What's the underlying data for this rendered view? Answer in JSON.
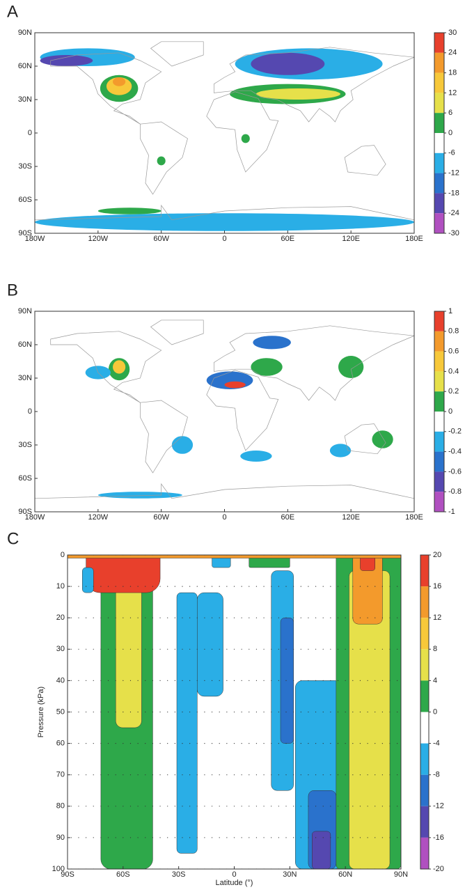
{
  "chart_data": [
    {
      "type": "map",
      "panel_label": "A",
      "xlim": [
        -180,
        180
      ],
      "ylim": [
        -90,
        90
      ],
      "xticks": [
        {
          "value": -180,
          "label": "180W"
        },
        {
          "value": -120,
          "label": "120W"
        },
        {
          "value": -60,
          "label": "60W"
        },
        0,
        {
          "value": 60,
          "label": "60E"
        },
        {
          "value": 120,
          "label": "120E"
        },
        {
          "value": 180,
          "label": "180E"
        }
      ],
      "yticks": [
        {
          "value": 90,
          "label": "90N"
        },
        {
          "value": 60,
          "label": "60N"
        },
        {
          "value": 30,
          "label": "30N"
        },
        0,
        {
          "value": -30,
          "label": "30S"
        },
        {
          "value": -60,
          "label": "60S"
        },
        {
          "value": -90,
          "label": "90S"
        }
      ],
      "colorbar": {
        "levels": [
          30,
          24,
          18,
          12,
          6,
          0,
          -6,
          -12,
          -18,
          -24,
          -30
        ],
        "colors": [
          "#e8402c",
          "#f39a2c",
          "#f7c83a",
          "#e6e04a",
          "#2ea84a",
          "#ffffff",
          "#2aaee6",
          "#2a72cc",
          "#5548b0",
          "#b050c0"
        ]
      }
    },
    {
      "type": "map",
      "panel_label": "B",
      "xlim": [
        -180,
        180
      ],
      "ylim": [
        -90,
        90
      ],
      "xticks": [
        {
          "value": -180,
          "label": "180W"
        },
        {
          "value": -120,
          "label": "120W"
        },
        {
          "value": -60,
          "label": "60W"
        },
        0,
        {
          "value": 60,
          "label": "60E"
        },
        {
          "value": 120,
          "label": "120E"
        },
        {
          "value": 180,
          "label": "180E"
        }
      ],
      "yticks": [
        {
          "value": 90,
          "label": "90N"
        },
        {
          "value": 60,
          "label": "60N"
        },
        {
          "value": 30,
          "label": "30N"
        },
        0,
        {
          "value": -30,
          "label": "30S"
        },
        {
          "value": -60,
          "label": "60S"
        },
        {
          "value": -90,
          "label": "90S"
        }
      ],
      "colorbar": {
        "levels": [
          1,
          0.8,
          0.6,
          0.4,
          0.2,
          0,
          -0.2,
          -0.4,
          -0.6,
          -0.8,
          -1
        ],
        "colors": [
          "#e8402c",
          "#f39a2c",
          "#f7c83a",
          "#e6e04a",
          "#2ea84a",
          "#ffffff",
          "#2aaee6",
          "#2a72cc",
          "#5548b0",
          "#b050c0"
        ]
      }
    },
    {
      "type": "contour",
      "panel_label": "C",
      "x_label": "Latitude (°)",
      "y_label": "Pressure (kPa)",
      "xlim": [
        -90,
        90
      ],
      "ylim": [
        0,
        100
      ],
      "y_inverted": true,
      "xticks": [
        {
          "value": -90,
          "label": "90S"
        },
        {
          "value": -60,
          "label": "60S"
        },
        {
          "value": -30,
          "label": "30S"
        },
        0,
        {
          "value": 30,
          "label": "30N"
        },
        {
          "value": 60,
          "label": "60N"
        },
        {
          "value": 90,
          "label": "90N"
        }
      ],
      "yticks": [
        0,
        10,
        20,
        30,
        40,
        50,
        60,
        70,
        80,
        90,
        100
      ],
      "colorbar": {
        "levels": [
          20,
          16,
          12,
          8,
          4,
          0,
          -4,
          -8,
          -12,
          -16,
          -20
        ],
        "colors": [
          "#e8402c",
          "#f39a2c",
          "#f7c83a",
          "#e6e04a",
          "#2ea84a",
          "#ffffff",
          "#2aaee6",
          "#2a72cc",
          "#5548b0",
          "#b050c0"
        ]
      }
    }
  ]
}
